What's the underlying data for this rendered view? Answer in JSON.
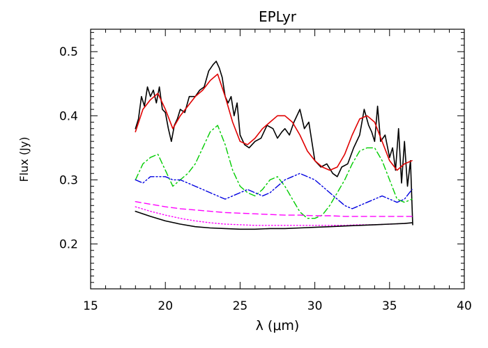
{
  "chart_data": {
    "type": "line",
    "title": "EPLyr",
    "xlabel": "λ (μm)",
    "ylabel": "Flux (Jy)",
    "xlim": [
      15,
      40
    ],
    "ylim": [
      0.13,
      0.535
    ],
    "x_ticks": [
      15,
      20,
      25,
      30,
      35,
      40
    ],
    "x_tick_labels": [
      "15",
      "20",
      "25",
      "30",
      "35",
      "40"
    ],
    "y_ticks": [
      0.2,
      0.3,
      0.4,
      0.5
    ],
    "y_tick_labels": [
      "0.2",
      "0.3",
      "0.4",
      "0.5"
    ],
    "grid": false,
    "legend": "none",
    "series": [
      {
        "color": "#000000",
        "dash": "solid",
        "width": 1.6,
        "x": [
          18.0,
          18.2,
          18.4,
          18.6,
          18.8,
          19.0,
          19.2,
          19.4,
          19.6,
          19.8,
          20.0,
          20.2,
          20.4,
          20.6,
          20.8,
          21.0,
          21.3,
          21.6,
          22.0,
          22.3,
          22.6,
          22.9,
          23.2,
          23.4,
          23.6,
          23.8,
          24.0,
          24.2,
          24.4,
          24.6,
          24.8,
          25.0,
          25.3,
          25.6,
          26.0,
          26.4,
          26.8,
          27.2,
          27.5,
          27.8,
          28.0,
          28.3,
          28.6,
          29.0,
          29.3,
          29.6,
          30.0,
          30.4,
          30.8,
          31.2,
          31.5,
          31.8,
          32.2,
          32.6,
          33.0,
          33.3,
          33.6,
          33.8,
          34.0,
          34.2,
          34.4,
          34.7,
          35.0,
          35.2,
          35.4,
          35.6,
          35.8,
          36.0,
          36.2,
          36.4,
          36.55
        ],
        "values": [
          0.38,
          0.395,
          0.43,
          0.415,
          0.445,
          0.43,
          0.44,
          0.42,
          0.445,
          0.41,
          0.405,
          0.38,
          0.36,
          0.385,
          0.395,
          0.41,
          0.405,
          0.43,
          0.43,
          0.44,
          0.445,
          0.47,
          0.48,
          0.485,
          0.475,
          0.46,
          0.43,
          0.42,
          0.43,
          0.4,
          0.42,
          0.37,
          0.355,
          0.35,
          0.36,
          0.365,
          0.385,
          0.38,
          0.365,
          0.375,
          0.38,
          0.37,
          0.39,
          0.41,
          0.38,
          0.39,
          0.33,
          0.32,
          0.325,
          0.31,
          0.305,
          0.32,
          0.325,
          0.35,
          0.37,
          0.41,
          0.385,
          0.375,
          0.36,
          0.415,
          0.36,
          0.37,
          0.335,
          0.35,
          0.315,
          0.38,
          0.295,
          0.36,
          0.29,
          0.33,
          0.23
        ]
      },
      {
        "color": "#e00000",
        "dash": "solid",
        "width": 1.6,
        "x": [
          18.0,
          18.5,
          19.0,
          19.5,
          20.0,
          20.5,
          21.0,
          21.5,
          22.0,
          22.5,
          23.0,
          23.5,
          24.0,
          24.5,
          25.0,
          25.5,
          26.0,
          26.5,
          27.0,
          27.5,
          28.0,
          28.5,
          29.0,
          29.5,
          30.0,
          30.5,
          31.0,
          31.5,
          32.0,
          32.5,
          33.0,
          33.5,
          34.0,
          34.5,
          35.0,
          35.5,
          36.0,
          36.5
        ],
        "values": [
          0.375,
          0.41,
          0.425,
          0.435,
          0.41,
          0.38,
          0.4,
          0.415,
          0.43,
          0.44,
          0.455,
          0.465,
          0.43,
          0.39,
          0.36,
          0.355,
          0.365,
          0.38,
          0.39,
          0.4,
          0.4,
          0.39,
          0.37,
          0.345,
          0.33,
          0.32,
          0.315,
          0.32,
          0.34,
          0.37,
          0.395,
          0.4,
          0.39,
          0.36,
          0.33,
          0.315,
          0.325,
          0.33
        ]
      },
      {
        "color": "#00cc00",
        "dash": "dashdot",
        "width": 1.4,
        "x": [
          18.0,
          18.5,
          19.0,
          19.5,
          20.0,
          20.5,
          21.0,
          21.5,
          22.0,
          22.5,
          23.0,
          23.5,
          24.0,
          24.5,
          25.0,
          25.5,
          26.0,
          26.5,
          27.0,
          27.5,
          28.0,
          28.5,
          29.0,
          29.5,
          30.0,
          30.5,
          31.0,
          31.5,
          32.0,
          32.5,
          33.0,
          33.5,
          34.0,
          34.5,
          35.0,
          35.5,
          36.0,
          36.5
        ],
        "values": [
          0.3,
          0.325,
          0.335,
          0.34,
          0.315,
          0.29,
          0.3,
          0.31,
          0.325,
          0.35,
          0.375,
          0.385,
          0.355,
          0.315,
          0.29,
          0.28,
          0.275,
          0.285,
          0.3,
          0.305,
          0.29,
          0.27,
          0.25,
          0.24,
          0.24,
          0.245,
          0.26,
          0.28,
          0.3,
          0.325,
          0.345,
          0.35,
          0.35,
          0.33,
          0.3,
          0.27,
          0.265,
          0.27
        ]
      },
      {
        "color": "#0000e0",
        "dash": "dashdotdot",
        "width": 1.4,
        "x": [
          18.0,
          18.5,
          19.0,
          19.5,
          20.0,
          20.5,
          21.0,
          21.5,
          22.0,
          22.5,
          23.0,
          23.5,
          24.0,
          24.5,
          25.0,
          25.5,
          26.0,
          26.5,
          27.0,
          27.5,
          28.0,
          28.5,
          29.0,
          29.5,
          30.0,
          30.5,
          31.0,
          31.5,
          32.0,
          32.5,
          33.0,
          33.5,
          34.0,
          34.5,
          35.0,
          35.5,
          36.0,
          36.5
        ],
        "values": [
          0.3,
          0.295,
          0.305,
          0.305,
          0.305,
          0.3,
          0.3,
          0.295,
          0.29,
          0.285,
          0.28,
          0.275,
          0.27,
          0.275,
          0.28,
          0.285,
          0.28,
          0.275,
          0.28,
          0.29,
          0.3,
          0.305,
          0.31,
          0.305,
          0.3,
          0.29,
          0.28,
          0.27,
          0.26,
          0.255,
          0.26,
          0.265,
          0.27,
          0.275,
          0.27,
          0.265,
          0.27,
          0.285
        ]
      },
      {
        "color": "#ff00ff",
        "dash": "dashed",
        "width": 1.4,
        "x": [
          18.0,
          19.0,
          20.0,
          21.0,
          22.0,
          23.0,
          24.0,
          25.0,
          26.0,
          27.0,
          28.0,
          29.0,
          30.0,
          31.0,
          32.0,
          33.0,
          34.0,
          35.0,
          36.0,
          36.5
        ],
        "values": [
          0.266,
          0.262,
          0.258,
          0.255,
          0.253,
          0.251,
          0.249,
          0.248,
          0.247,
          0.246,
          0.245,
          0.245,
          0.244,
          0.244,
          0.243,
          0.243,
          0.243,
          0.243,
          0.243,
          0.243
        ]
      },
      {
        "color": "#ff00ff",
        "dash": "dotted",
        "width": 1.4,
        "x": [
          18.0,
          19.0,
          20.0,
          21.0,
          22.0,
          23.0,
          24.0,
          25.0,
          26.0,
          27.0,
          28.0,
          29.0,
          30.0,
          31.0,
          32.0,
          33.0,
          34.0,
          35.0,
          36.0,
          36.5
        ],
        "values": [
          0.258,
          0.251,
          0.245,
          0.24,
          0.236,
          0.233,
          0.231,
          0.23,
          0.229,
          0.229,
          0.229,
          0.229,
          0.229,
          0.229,
          0.229,
          0.23,
          0.23,
          0.231,
          0.232,
          0.233
        ]
      },
      {
        "color": "#000000",
        "dash": "solid",
        "width": 1.6,
        "x": [
          18.0,
          19.0,
          20.0,
          21.0,
          22.0,
          23.0,
          24.0,
          25.0,
          26.0,
          27.0,
          28.0,
          29.0,
          30.0,
          31.0,
          32.0,
          33.0,
          34.0,
          35.0,
          36.0,
          36.5
        ],
        "values": [
          0.251,
          0.243,
          0.236,
          0.231,
          0.227,
          0.225,
          0.224,
          0.223,
          0.223,
          0.224,
          0.224,
          0.225,
          0.226,
          0.227,
          0.228,
          0.229,
          0.23,
          0.231,
          0.232,
          0.233
        ]
      }
    ]
  }
}
